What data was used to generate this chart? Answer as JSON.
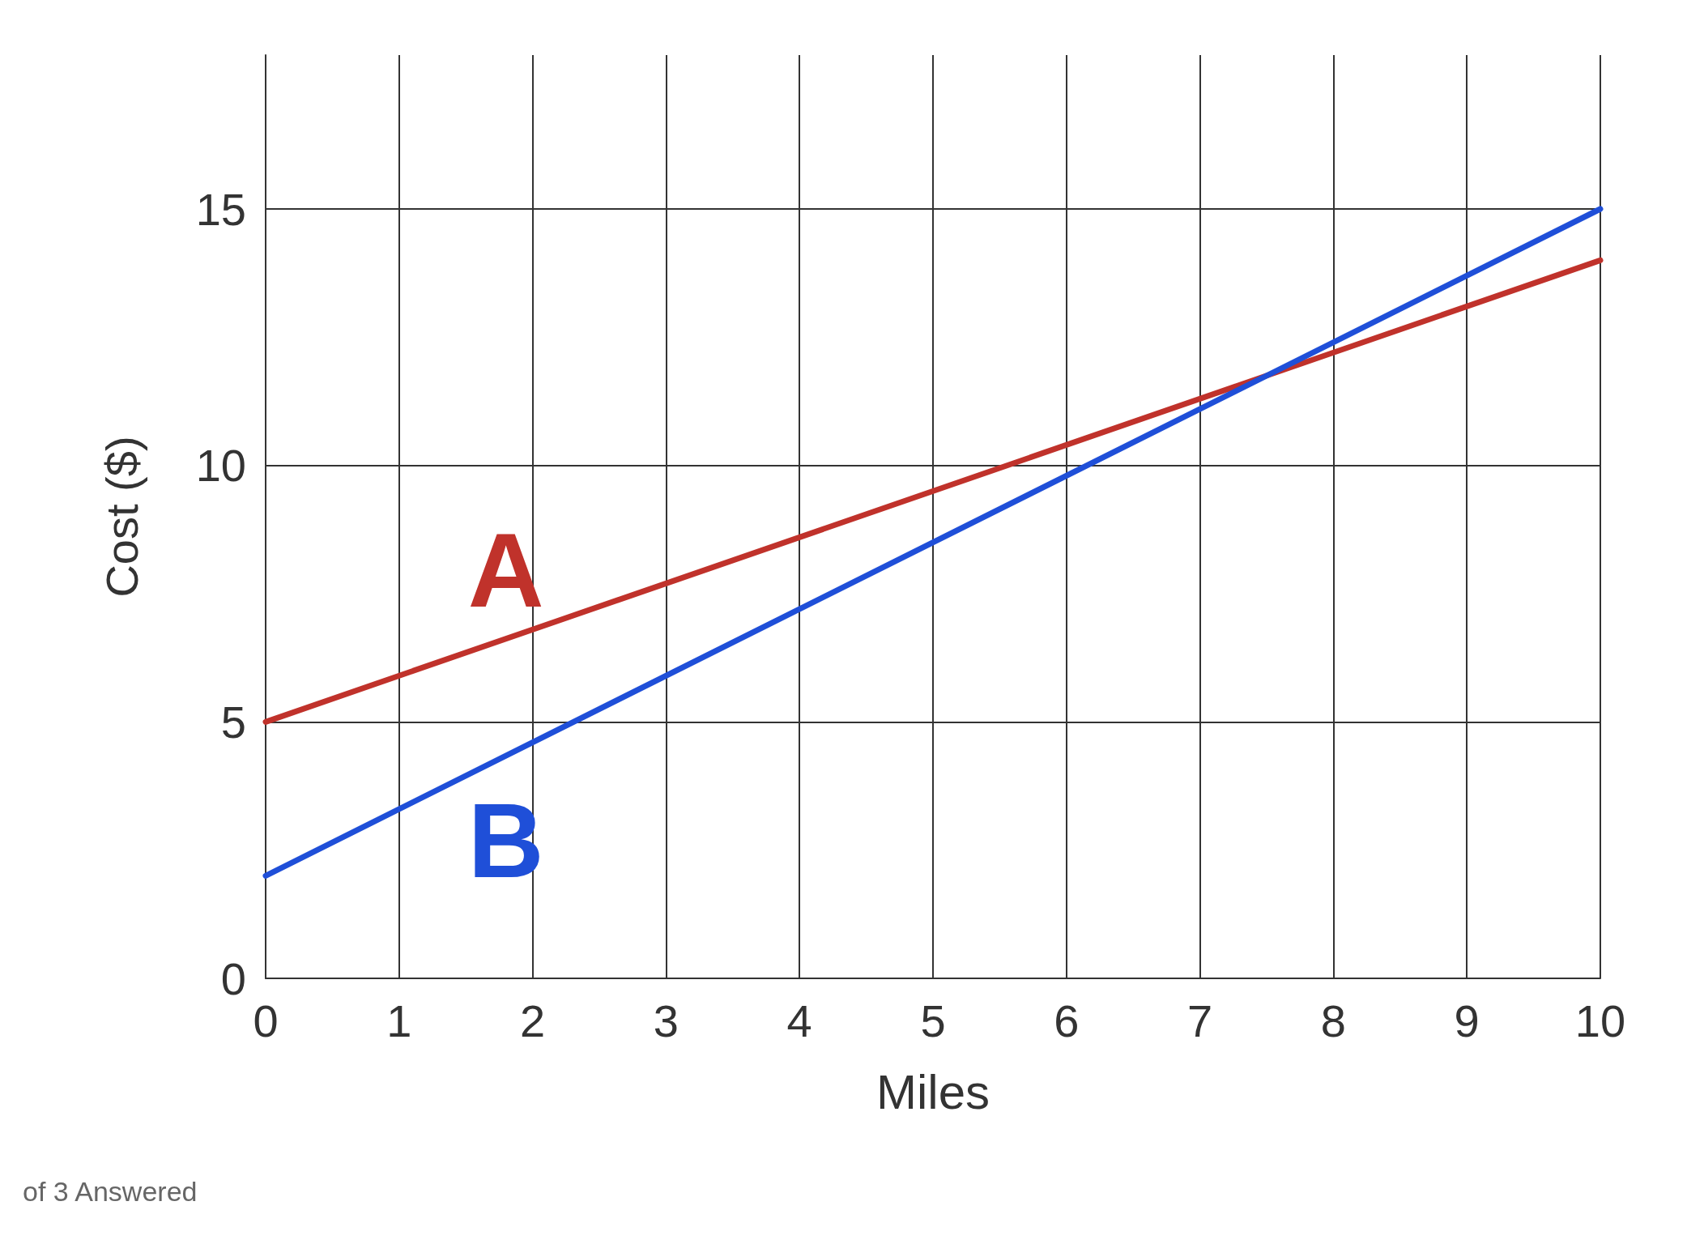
{
  "chart_data": {
    "type": "line",
    "xlabel": "Miles",
    "ylabel": "Cost ($)",
    "x": [
      0,
      10
    ],
    "series": [
      {
        "name": "A",
        "color": "#c0322b",
        "values": [
          5,
          14
        ]
      },
      {
        "name": "B",
        "color": "#1f4fd8",
        "values": [
          2,
          15
        ]
      }
    ],
    "xlim": [
      0,
      10
    ],
    "ylim": [
      0,
      18
    ],
    "xticks": [
      0,
      1,
      2,
      3,
      4,
      5,
      6,
      7,
      8,
      9,
      10
    ],
    "yticks": [
      0,
      5,
      10,
      15
    ],
    "grid": true,
    "legend": false,
    "marker": "none",
    "line_style": "solid",
    "annotations": [
      "of 3 Answered"
    ]
  }
}
